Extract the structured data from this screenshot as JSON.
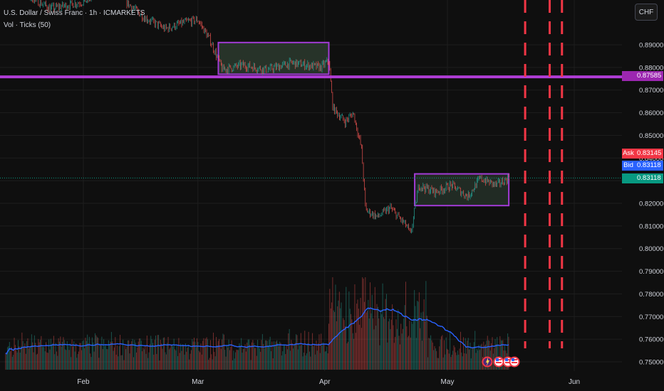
{
  "symbol": {
    "title": "U.S. Dollar / Swiss Franc · 1h · ICMARKETS",
    "indicator": "Vol · Ticks (50)"
  },
  "toolbar": {
    "currency": "CHF"
  },
  "quotes": {
    "ask_label": "Ask",
    "ask": "0.83145",
    "bid_label": "Bid",
    "bid": "0.83118",
    "last": "0.83118",
    "level": "0.87585"
  },
  "colors": {
    "background": "#0f0f0f",
    "up": "#26a69a",
    "down": "#ef5350",
    "zone": "#a23bd6",
    "level_line": "#b03dd6",
    "dashes": "#f23645",
    "vol_ma": "#2962ff",
    "ask_bg": "#f23645",
    "bid_bg": "#2962ff",
    "last_bg": "#089981"
  },
  "chart_data": {
    "type": "candlestick",
    "timeframe": "1h",
    "x_labels": [
      "Feb",
      "Mar",
      "Apr",
      "May",
      "Jun"
    ],
    "y_ticks": [
      "0.89000",
      "0.88000",
      "0.87000",
      "0.86000",
      "0.85000",
      "0.84000",
      "0.83000",
      "0.82000",
      "0.81000",
      "0.80000",
      "0.79000",
      "0.78000",
      "0.77000",
      "0.76000",
      "0.75000"
    ],
    "price_path": [
      {
        "date": "2025-01-13",
        "price": 0.918
      },
      {
        "date": "2025-01-18",
        "price": 0.912
      },
      {
        "date": "2025-01-24",
        "price": 0.906
      },
      {
        "date": "2025-02-01",
        "price": 0.909
      },
      {
        "date": "2025-02-08",
        "price": 0.915
      },
      {
        "date": "2025-02-12",
        "price": 0.908
      },
      {
        "date": "2025-02-16",
        "price": 0.902
      },
      {
        "date": "2025-02-21",
        "price": 0.897
      },
      {
        "date": "2025-02-26",
        "price": 0.9
      },
      {
        "date": "2025-03-01",
        "price": 0.901
      },
      {
        "date": "2025-03-04",
        "price": 0.892
      },
      {
        "date": "2025-03-07",
        "price": 0.879
      },
      {
        "date": "2025-03-12",
        "price": 0.881
      },
      {
        "date": "2025-03-18",
        "price": 0.879
      },
      {
        "date": "2025-03-24",
        "price": 0.882
      },
      {
        "date": "2025-03-31",
        "price": 0.88
      },
      {
        "date": "2025-04-02",
        "price": 0.883
      },
      {
        "date": "2025-04-03",
        "price": 0.862
      },
      {
        "date": "2025-04-06",
        "price": 0.856
      },
      {
        "date": "2025-04-08",
        "price": 0.86
      },
      {
        "date": "2025-04-10",
        "price": 0.844
      },
      {
        "date": "2025-04-11",
        "price": 0.817
      },
      {
        "date": "2025-04-14",
        "price": 0.814
      },
      {
        "date": "2025-04-17",
        "price": 0.818
      },
      {
        "date": "2025-04-21",
        "price": 0.81
      },
      {
        "date": "2025-04-22",
        "price": 0.806
      },
      {
        "date": "2025-04-24",
        "price": 0.828
      },
      {
        "date": "2025-04-28",
        "price": 0.825
      },
      {
        "date": "2025-05-02",
        "price": 0.828
      },
      {
        "date": "2025-05-06",
        "price": 0.823
      },
      {
        "date": "2025-05-09",
        "price": 0.831
      },
      {
        "date": "2025-05-13",
        "price": 0.828
      },
      {
        "date": "2025-05-16",
        "price": 0.8312
      }
    ],
    "zones": [
      {
        "from": "2025-03-06",
        "to": "2025-04-02",
        "high": 0.891,
        "low": 0.877,
        "fill": "#2c3a2e"
      },
      {
        "from": "2025-04-23",
        "to": "2025-05-16",
        "high": 0.833,
        "low": 0.819,
        "fill": "#243028"
      }
    ],
    "horizontal_level": 0.87585,
    "dashed_verticals": [
      "2025-05-20",
      "2025-05-26",
      "2025-05-29"
    ],
    "volume_ma_period": 50
  }
}
